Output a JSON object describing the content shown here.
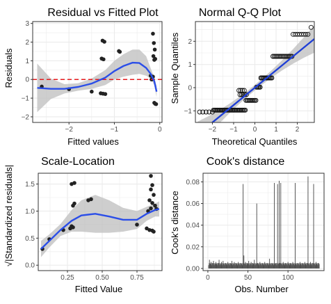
{
  "chart_data": [
    {
      "type": "scatter",
      "title": "Residual vs Fitted Plot",
      "xlabel": "Fitted values",
      "ylabel": "Residuals",
      "xlim": [
        -2.8,
        0.05
      ],
      "ylim": [
        -2.3,
        3.1
      ],
      "xticks": [
        -2,
        -1,
        0
      ],
      "yticks": [
        -2,
        -1,
        0,
        1,
        2,
        3
      ],
      "grid": true,
      "reference_line": {
        "y": 0,
        "color": "#e41a1c",
        "style": "dashed"
      },
      "points": [
        {
          "x": -2.6,
          "y": -0.38
        },
        {
          "x": -2.0,
          "y": -0.52
        },
        {
          "x": -1.5,
          "y": -0.65
        },
        {
          "x": -1.3,
          "y": -0.74
        },
        {
          "x": -1.25,
          "y": -0.76
        },
        {
          "x": -1.2,
          "y": -0.78
        },
        {
          "x": -1.28,
          "y": 1.12
        },
        {
          "x": -1.24,
          "y": 1.08
        },
        {
          "x": -1.26,
          "y": 2.08
        },
        {
          "x": -1.22,
          "y": 2.02
        },
        {
          "x": -0.9,
          "y": 1.52
        },
        {
          "x": -0.88,
          "y": 1.48
        },
        {
          "x": -0.2,
          "y": 0.2
        },
        {
          "x": -0.15,
          "y": 0.15
        },
        {
          "x": -0.12,
          "y": 1.05
        },
        {
          "x": -0.1,
          "y": 1.1
        },
        {
          "x": -0.14,
          "y": 1.25
        },
        {
          "x": -0.11,
          "y": 1.6
        },
        {
          "x": -0.13,
          "y": 1.95
        },
        {
          "x": -0.15,
          "y": 2.45
        },
        {
          "x": -0.12,
          "y": -1.25
        },
        {
          "x": -0.1,
          "y": -1.3
        },
        {
          "x": -0.08,
          "y": -1.32
        },
        {
          "x": -0.18,
          "y": 0.0
        }
      ],
      "smooth": [
        {
          "x": -2.7,
          "y": -0.45
        },
        {
          "x": -2.4,
          "y": -0.5
        },
        {
          "x": -2.1,
          "y": -0.5
        },
        {
          "x": -1.8,
          "y": -0.4
        },
        {
          "x": -1.5,
          "y": -0.22
        },
        {
          "x": -1.2,
          "y": 0.1
        },
        {
          "x": -1.0,
          "y": 0.45
        },
        {
          "x": -0.8,
          "y": 0.72
        },
        {
          "x": -0.6,
          "y": 0.9
        },
        {
          "x": -0.45,
          "y": 0.88
        },
        {
          "x": -0.3,
          "y": 0.62
        },
        {
          "x": -0.2,
          "y": 0.3
        },
        {
          "x": -0.12,
          "y": -0.1
        },
        {
          "x": -0.07,
          "y": -0.65
        }
      ],
      "ci_lower": [
        {
          "x": -2.7,
          "y": -1.75
        },
        {
          "x": -2.4,
          "y": -1.05
        },
        {
          "x": -2.1,
          "y": -0.75
        },
        {
          "x": -1.8,
          "y": -0.6
        },
        {
          "x": -1.5,
          "y": -0.5
        },
        {
          "x": -1.2,
          "y": -0.3
        },
        {
          "x": -1.0,
          "y": 0.0
        },
        {
          "x": -0.8,
          "y": 0.15
        },
        {
          "x": -0.6,
          "y": 0.25
        },
        {
          "x": -0.45,
          "y": 0.3
        },
        {
          "x": -0.3,
          "y": 0.2
        },
        {
          "x": -0.2,
          "y": 0.05
        },
        {
          "x": -0.12,
          "y": -0.3
        },
        {
          "x": -0.07,
          "y": -0.95
        }
      ],
      "ci_upper": [
        {
          "x": -2.7,
          "y": 0.85
        },
        {
          "x": -2.4,
          "y": 0.05
        },
        {
          "x": -2.1,
          "y": -0.25
        },
        {
          "x": -1.8,
          "y": -0.2
        },
        {
          "x": -1.5,
          "y": 0.05
        },
        {
          "x": -1.2,
          "y": 0.5
        },
        {
          "x": -1.0,
          "y": 1.0
        },
        {
          "x": -0.8,
          "y": 1.35
        },
        {
          "x": -0.6,
          "y": 1.6
        },
        {
          "x": -0.45,
          "y": 1.6
        },
        {
          "x": -0.3,
          "y": 1.25
        },
        {
          "x": -0.2,
          "y": 0.6
        },
        {
          "x": -0.12,
          "y": 0.1
        },
        {
          "x": -0.07,
          "y": -0.35
        }
      ]
    },
    {
      "type": "scatter",
      "title": "Normal Q-Q Plot",
      "xlabel": "Theoretical Quantiles",
      "ylabel": "Sample Quantiles",
      "xlim": [
        -2.8,
        2.8
      ],
      "ylim": [
        -1.5,
        2.85
      ],
      "xticks": [
        -2,
        -1,
        0,
        1,
        2
      ],
      "yticks": [
        -1,
        0,
        1,
        2
      ],
      "grid": true,
      "reference_line": {
        "slope": 0.75,
        "intercept": 0.0,
        "color": "#1f3fd6"
      },
      "plateaus": [
        {
          "x_from": -2.6,
          "x_to": -2.0,
          "y": -1.05,
          "n": 5
        },
        {
          "x_from": -1.95,
          "x_to": -0.45,
          "y": -0.97,
          "n": 34
        },
        {
          "x_from": -0.42,
          "x_to": 0.05,
          "y": -0.55,
          "n": 11
        },
        {
          "x_from": -0.7,
          "x_to": -0.4,
          "y": -0.3,
          "n": 5
        },
        {
          "x_from": -0.75,
          "x_to": -0.5,
          "y": -0.12,
          "n": 4
        },
        {
          "x_from": 0.08,
          "x_to": 0.25,
          "y": 0.02,
          "n": 5
        },
        {
          "x_from": 0.28,
          "x_to": 0.8,
          "y": 0.42,
          "n": 12
        },
        {
          "x_from": 0.85,
          "x_to": 1.75,
          "y": 1.35,
          "n": 16
        },
        {
          "x_from": 1.8,
          "x_to": 2.5,
          "y": 2.3,
          "n": 8
        },
        {
          "x_from": 2.65,
          "x_to": 2.65,
          "y": 2.6,
          "n": 1
        }
      ]
    },
    {
      "type": "scatter",
      "title": "Scale-Location",
      "xlabel": "Fitted Value",
      "ylabel": "√|Standardized residuals|",
      "xlim": [
        0.04,
        0.93
      ],
      "ylim": [
        -0.1,
        1.7
      ],
      "xticks": [
        0.25,
        0.5,
        0.75
      ],
      "xtick_labels": [
        "0.25",
        "0.50",
        "0.75"
      ],
      "yticks": [
        0.0,
        0.5,
        1.0,
        1.5
      ],
      "ytick_labels": [
        "0.0",
        "0.5",
        "1.0",
        "1.5"
      ],
      "grid": true,
      "points": [
        {
          "x": 0.07,
          "y": 0.3
        },
        {
          "x": 0.12,
          "y": 0.48
        },
        {
          "x": 0.22,
          "y": 0.65
        },
        {
          "x": 0.27,
          "y": 0.68
        },
        {
          "x": 0.29,
          "y": 0.7
        },
        {
          "x": 0.28,
          "y": 0.72
        },
        {
          "x": 0.29,
          "y": 1.1
        },
        {
          "x": 0.3,
          "y": 1.14
        },
        {
          "x": 0.28,
          "y": 1.5
        },
        {
          "x": 0.3,
          "y": 1.52
        },
        {
          "x": 0.4,
          "y": 1.2
        },
        {
          "x": 0.42,
          "y": 1.22
        },
        {
          "x": 0.75,
          "y": 0.75
        },
        {
          "x": 0.82,
          "y": 0.68
        },
        {
          "x": 0.84,
          "y": 0.65
        },
        {
          "x": 0.86,
          "y": 0.64
        },
        {
          "x": 0.87,
          "y": 0.62
        },
        {
          "x": 0.83,
          "y": 1.0
        },
        {
          "x": 0.85,
          "y": 1.05
        },
        {
          "x": 0.88,
          "y": 1.1
        },
        {
          "x": 0.86,
          "y": 1.15
        },
        {
          "x": 0.84,
          "y": 1.2
        },
        {
          "x": 0.87,
          "y": 1.3
        },
        {
          "x": 0.85,
          "y": 1.4
        },
        {
          "x": 0.86,
          "y": 1.48
        },
        {
          "x": 0.85,
          "y": 1.65
        },
        {
          "x": 0.89,
          "y": 1.04
        }
      ],
      "smooth": [
        {
          "x": 0.06,
          "y": 0.3
        },
        {
          "x": 0.12,
          "y": 0.45
        },
        {
          "x": 0.2,
          "y": 0.65
        },
        {
          "x": 0.28,
          "y": 0.82
        },
        {
          "x": 0.35,
          "y": 0.92
        },
        {
          "x": 0.45,
          "y": 0.95
        },
        {
          "x": 0.55,
          "y": 0.9
        },
        {
          "x": 0.65,
          "y": 0.84
        },
        {
          "x": 0.75,
          "y": 0.84
        },
        {
          "x": 0.82,
          "y": 0.95
        },
        {
          "x": 0.88,
          "y": 1.02
        },
        {
          "x": 0.91,
          "y": 1.04
        }
      ],
      "ci_lower": [
        {
          "x": 0.06,
          "y": 0.15
        },
        {
          "x": 0.12,
          "y": 0.33
        },
        {
          "x": 0.2,
          "y": 0.54
        },
        {
          "x": 0.28,
          "y": 0.62
        },
        {
          "x": 0.35,
          "y": 0.62
        },
        {
          "x": 0.45,
          "y": 0.6
        },
        {
          "x": 0.55,
          "y": 0.6
        },
        {
          "x": 0.65,
          "y": 0.62
        },
        {
          "x": 0.75,
          "y": 0.67
        },
        {
          "x": 0.82,
          "y": 0.82
        },
        {
          "x": 0.88,
          "y": 0.9
        },
        {
          "x": 0.91,
          "y": 0.9
        }
      ],
      "ci_upper": [
        {
          "x": 0.06,
          "y": 0.45
        },
        {
          "x": 0.12,
          "y": 0.57
        },
        {
          "x": 0.2,
          "y": 0.76
        },
        {
          "x": 0.28,
          "y": 1.02
        },
        {
          "x": 0.35,
          "y": 1.2
        },
        {
          "x": 0.45,
          "y": 1.3
        },
        {
          "x": 0.55,
          "y": 1.2
        },
        {
          "x": 0.65,
          "y": 1.06
        },
        {
          "x": 0.75,
          "y": 1.0
        },
        {
          "x": 0.82,
          "y": 1.08
        },
        {
          "x": 0.88,
          "y": 1.14
        },
        {
          "x": 0.91,
          "y": 1.18
        }
      ]
    },
    {
      "type": "bar",
      "title": "Cook's distance",
      "xlabel": "Obs. Number",
      "ylabel": "Cook's distance",
      "xlim": [
        -6,
        145
      ],
      "ylim": [
        -0.002,
        0.088
      ],
      "xticks": [
        0,
        50,
        100
      ],
      "yticks": [
        0.0,
        0.02,
        0.04,
        0.06,
        0.08
      ],
      "ytick_labels": [
        "0.00",
        "0.02",
        "0.04",
        "0.06",
        "0.08"
      ],
      "grid": true,
      "baseline": 0.0048,
      "values": [
        0.003,
        0.008,
        0.004,
        0.006,
        0.003,
        0.005,
        0.007,
        0.003,
        0.004,
        0.006,
        0.004,
        0.003,
        0.005,
        0.008,
        0.003,
        0.004,
        0.006,
        0.003,
        0.007,
        0.004,
        0.003,
        0.005,
        0.004,
        0.003,
        0.006,
        0.004,
        0.003,
        0.005,
        0.004,
        0.007,
        0.003,
        0.004,
        0.006,
        0.003,
        0.005,
        0.004,
        0.003,
        0.006,
        0.004,
        0.003,
        0.005,
        0.004,
        0.003,
        0.078,
        0.012,
        0.004,
        0.006,
        0.003,
        0.005,
        0.004,
        0.007,
        0.003,
        0.004,
        0.006,
        0.003,
        0.005,
        0.004,
        0.008,
        0.003,
        0.004,
        0.06,
        0.005,
        0.004,
        0.003,
        0.006,
        0.004,
        0.003,
        0.005,
        0.004,
        0.003,
        0.006,
        0.004,
        0.003,
        0.005,
        0.004,
        0.003,
        0.009,
        0.004,
        0.003,
        0.005,
        0.004,
        0.003,
        0.079,
        0.004,
        0.005,
        0.003,
        0.078,
        0.004,
        0.081,
        0.005,
        0.079,
        0.004,
        0.003,
        0.006,
        0.004,
        0.003,
        0.005,
        0.004,
        0.003,
        0.006,
        0.004,
        0.003,
        0.005,
        0.004,
        0.003,
        0.006,
        0.004,
        0.003,
        0.079,
        0.004,
        0.003,
        0.005,
        0.004,
        0.003,
        0.006,
        0.004,
        0.003,
        0.005,
        0.004,
        0.003,
        0.006,
        0.004,
        0.003,
        0.005,
        0.085,
        0.004,
        0.003,
        0.006,
        0.004,
        0.003,
        0.005,
        0.078,
        0.004,
        0.003,
        0.006,
        0.004,
        0.003,
        0.005,
        0.004
      ]
    }
  ],
  "colors": {
    "panel_background": "#ffffff",
    "grid": "#ebebeb",
    "panel_border": "#333333",
    "point": "#222222",
    "smooth_line": "#2b4ee8",
    "confidence_band": "#bdbdbd",
    "reference_dashed": "#e41a1c",
    "qq_line": "#1f3fd6",
    "bar": "#444444"
  }
}
